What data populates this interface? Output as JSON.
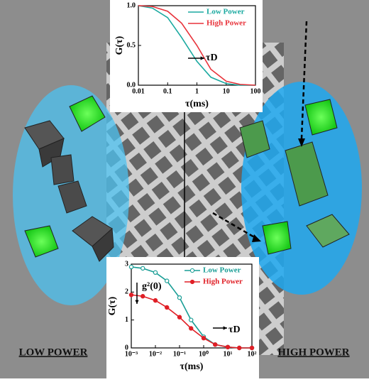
{
  "labels": [
    "LOW POWER",
    "HIGH POWER"
  ],
  "chart_data": [
    {
      "type": "line",
      "xscale": "log",
      "x_label": "τ(ms)",
      "y_label": "G(τ)",
      "annotations": [
        "τD"
      ],
      "x": [
        0.01,
        0.03,
        0.1,
        0.3,
        1,
        3,
        10,
        30,
        100
      ],
      "series": [
        {
          "name": "Low Power",
          "color": "#1aa9a0",
          "values": [
            1.0,
            0.97,
            0.85,
            0.6,
            0.3,
            0.1,
            0.02,
            0.0,
            0.0
          ]
        },
        {
          "name": "High Power",
          "color": "#e8323a",
          "values": [
            1.0,
            0.99,
            0.93,
            0.78,
            0.5,
            0.2,
            0.05,
            0.01,
            0.0
          ]
        }
      ],
      "xlim": [
        0.01,
        100
      ],
      "xticks": [
        0.01,
        0.1,
        1,
        10,
        100
      ],
      "ylim": [
        0,
        1
      ],
      "yticks": [
        {
          "value": 0,
          "label": "0.0"
        },
        {
          "value": 0.5,
          "label": "0.5"
        },
        {
          "value": 1,
          "label": "1.0"
        }
      ],
      "legend": "upper right"
    },
    {
      "type": "line",
      "xscale": "log",
      "marker": "circle",
      "x_label": "τ(ms)",
      "y_label": "G(τ)",
      "annotations": [
        "g²(0)",
        "τD"
      ],
      "x": [
        0.001,
        0.003,
        0.01,
        0.03,
        0.1,
        0.3,
        1,
        3,
        10,
        30,
        100
      ],
      "series": [
        {
          "name": "Low Power",
          "color": "#1a9e96",
          "values": [
            2.9,
            2.85,
            2.7,
            2.4,
            1.8,
            1.0,
            0.4,
            0.12,
            0.03,
            0.0,
            0.0
          ]
        },
        {
          "name": "High Power",
          "color": "#e01f26",
          "values": [
            1.9,
            1.85,
            1.7,
            1.45,
            1.1,
            0.7,
            0.35,
            0.12,
            0.03,
            0.0,
            0.0
          ]
        }
      ],
      "xlim": [
        0.001,
        100
      ],
      "xticks": [
        {
          "value": 0.001,
          "label": "10⁻³"
        },
        {
          "value": 0.01,
          "label": "10⁻²"
        },
        {
          "value": 0.1,
          "label": "10⁻¹"
        },
        {
          "value": 1,
          "label": "10⁰"
        },
        {
          "value": 10,
          "label": "10¹"
        },
        {
          "value": 100,
          "label": "10²"
        }
      ],
      "ylim": [
        0,
        3
      ],
      "yticks": [
        0,
        1,
        2,
        3
      ],
      "legend": "upper right"
    }
  ]
}
